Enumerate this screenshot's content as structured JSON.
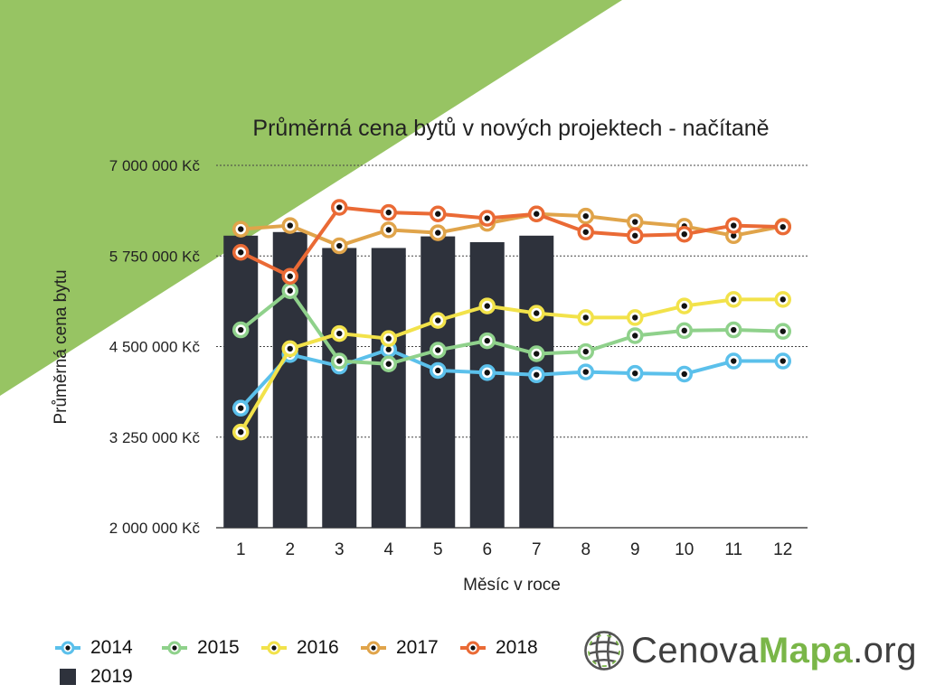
{
  "chart_data": {
    "type": "line",
    "title": "Průměrná cena bytů v nových projektech - načítaně",
    "xlabel": "Měsíc v roce",
    "ylabel": "Průměrná cena bytu",
    "categories": [
      "1",
      "2",
      "3",
      "4",
      "5",
      "6",
      "7",
      "8",
      "9",
      "10",
      "11",
      "12"
    ],
    "ylim": [
      2000000,
      7000000
    ],
    "yticks": [
      2000000,
      3250000,
      4500000,
      5750000,
      7000000
    ],
    "ytick_labels": [
      "2 000 000 Kč",
      "3 250 000 Kč",
      "4 500 000 Kč",
      "5 750 000 Kč",
      "7 000 000 Kč"
    ],
    "grid": true,
    "legend_position": "bottom-left",
    "bar_series": {
      "name": "2019",
      "color": "#2e323c",
      "values": [
        6030000,
        6080000,
        5860000,
        5860000,
        6020000,
        5940000,
        6030000
      ]
    },
    "series": [
      {
        "name": "2014",
        "color": "#5bc0eb",
        "values": [
          3650000,
          4390000,
          4230000,
          4460000,
          4170000,
          4140000,
          4110000,
          4150000,
          4130000,
          4120000,
          4300000,
          4300000
        ]
      },
      {
        "name": "2015",
        "color": "#8fd18b",
        "values": [
          4730000,
          5270000,
          4300000,
          4260000,
          4450000,
          4580000,
          4400000,
          4430000,
          4650000,
          4720000,
          4730000,
          4710000
        ]
      },
      {
        "name": "2016",
        "color": "#f2e24a",
        "values": [
          3320000,
          4470000,
          4680000,
          4610000,
          4860000,
          5060000,
          4960000,
          4900000,
          4900000,
          5060000,
          5150000,
          5150000
        ]
      },
      {
        "name": "2017",
        "color": "#e0a44a",
        "values": [
          6120000,
          6170000,
          5890000,
          6110000,
          6070000,
          6200000,
          6330000,
          6300000,
          6220000,
          6160000,
          6030000,
          6160000
        ]
      },
      {
        "name": "2018",
        "color": "#ea6a35",
        "values": [
          5800000,
          5470000,
          6420000,
          6350000,
          6330000,
          6270000,
          6330000,
          6080000,
          6030000,
          6050000,
          6170000,
          6150000
        ]
      }
    ]
  },
  "legend": {
    "items": [
      {
        "label": "2014",
        "color": "#5bc0eb",
        "kind": "line"
      },
      {
        "label": "2015",
        "color": "#8fd18b",
        "kind": "line"
      },
      {
        "label": "2016",
        "color": "#f2e24a",
        "kind": "line"
      },
      {
        "label": "2017",
        "color": "#e0a44a",
        "kind": "line"
      },
      {
        "label": "2018",
        "color": "#ea6a35",
        "kind": "line"
      },
      {
        "label": "2019",
        "color": "#2e323c",
        "kind": "bar"
      }
    ]
  },
  "logo": {
    "part1": "Cenova",
    "part2": "Mapa",
    "part3": ".org",
    "icon": "globe-icon"
  },
  "colors": {
    "accent_green": "#97c463",
    "bar": "#2e323c"
  }
}
